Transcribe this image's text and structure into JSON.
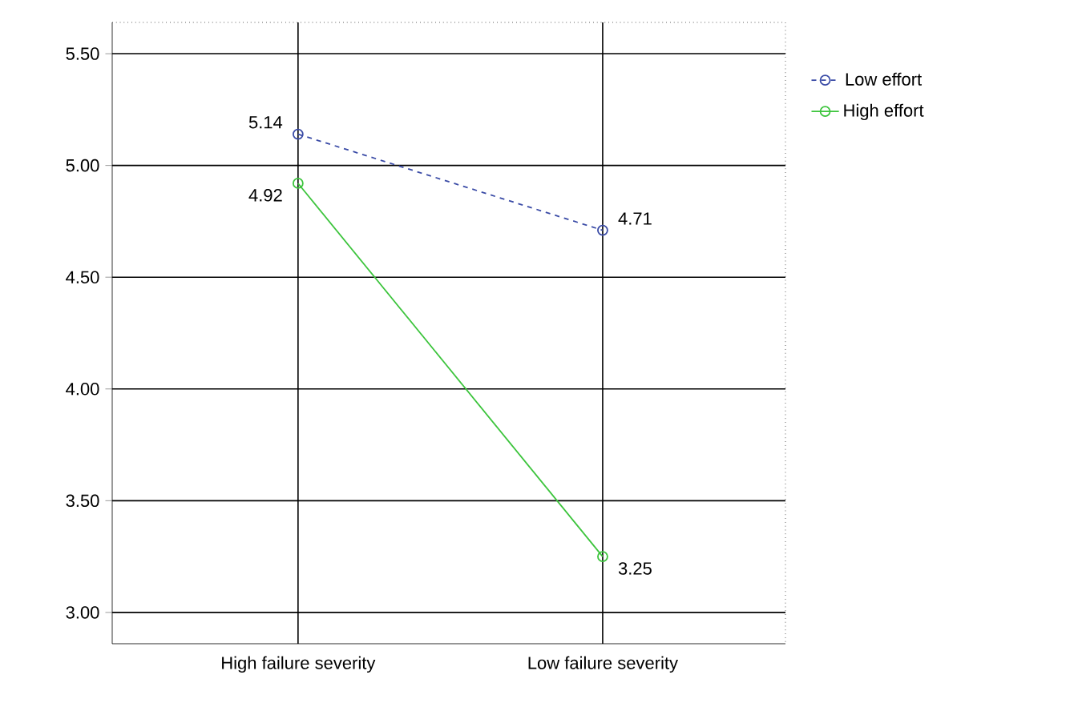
{
  "chart_data": {
    "type": "line",
    "categories": [
      "High failure severity",
      "Low failure severity"
    ],
    "series": [
      {
        "name": "Low effort",
        "color": "#3a4ba6",
        "values": [
          5.14,
          4.71
        ],
        "line_style": "dashed"
      },
      {
        "name": "High effort",
        "color": "#3cc43c",
        "values": [
          4.92,
          3.25
        ],
        "line_style": "solid"
      }
    ],
    "ylim": [
      2.86,
      5.64
    ],
    "yticks": [
      {
        "value": 3.0,
        "label": "3.00"
      },
      {
        "value": 3.5,
        "label": "3.50"
      },
      {
        "value": 4.0,
        "label": "4.00"
      },
      {
        "value": 4.5,
        "label": "4.50"
      },
      {
        "value": 5.0,
        "label": "5.00"
      },
      {
        "value": 5.5,
        "label": "5.50"
      }
    ],
    "grid": true,
    "legend": "right",
    "marker": "circle",
    "data_labels": true
  }
}
